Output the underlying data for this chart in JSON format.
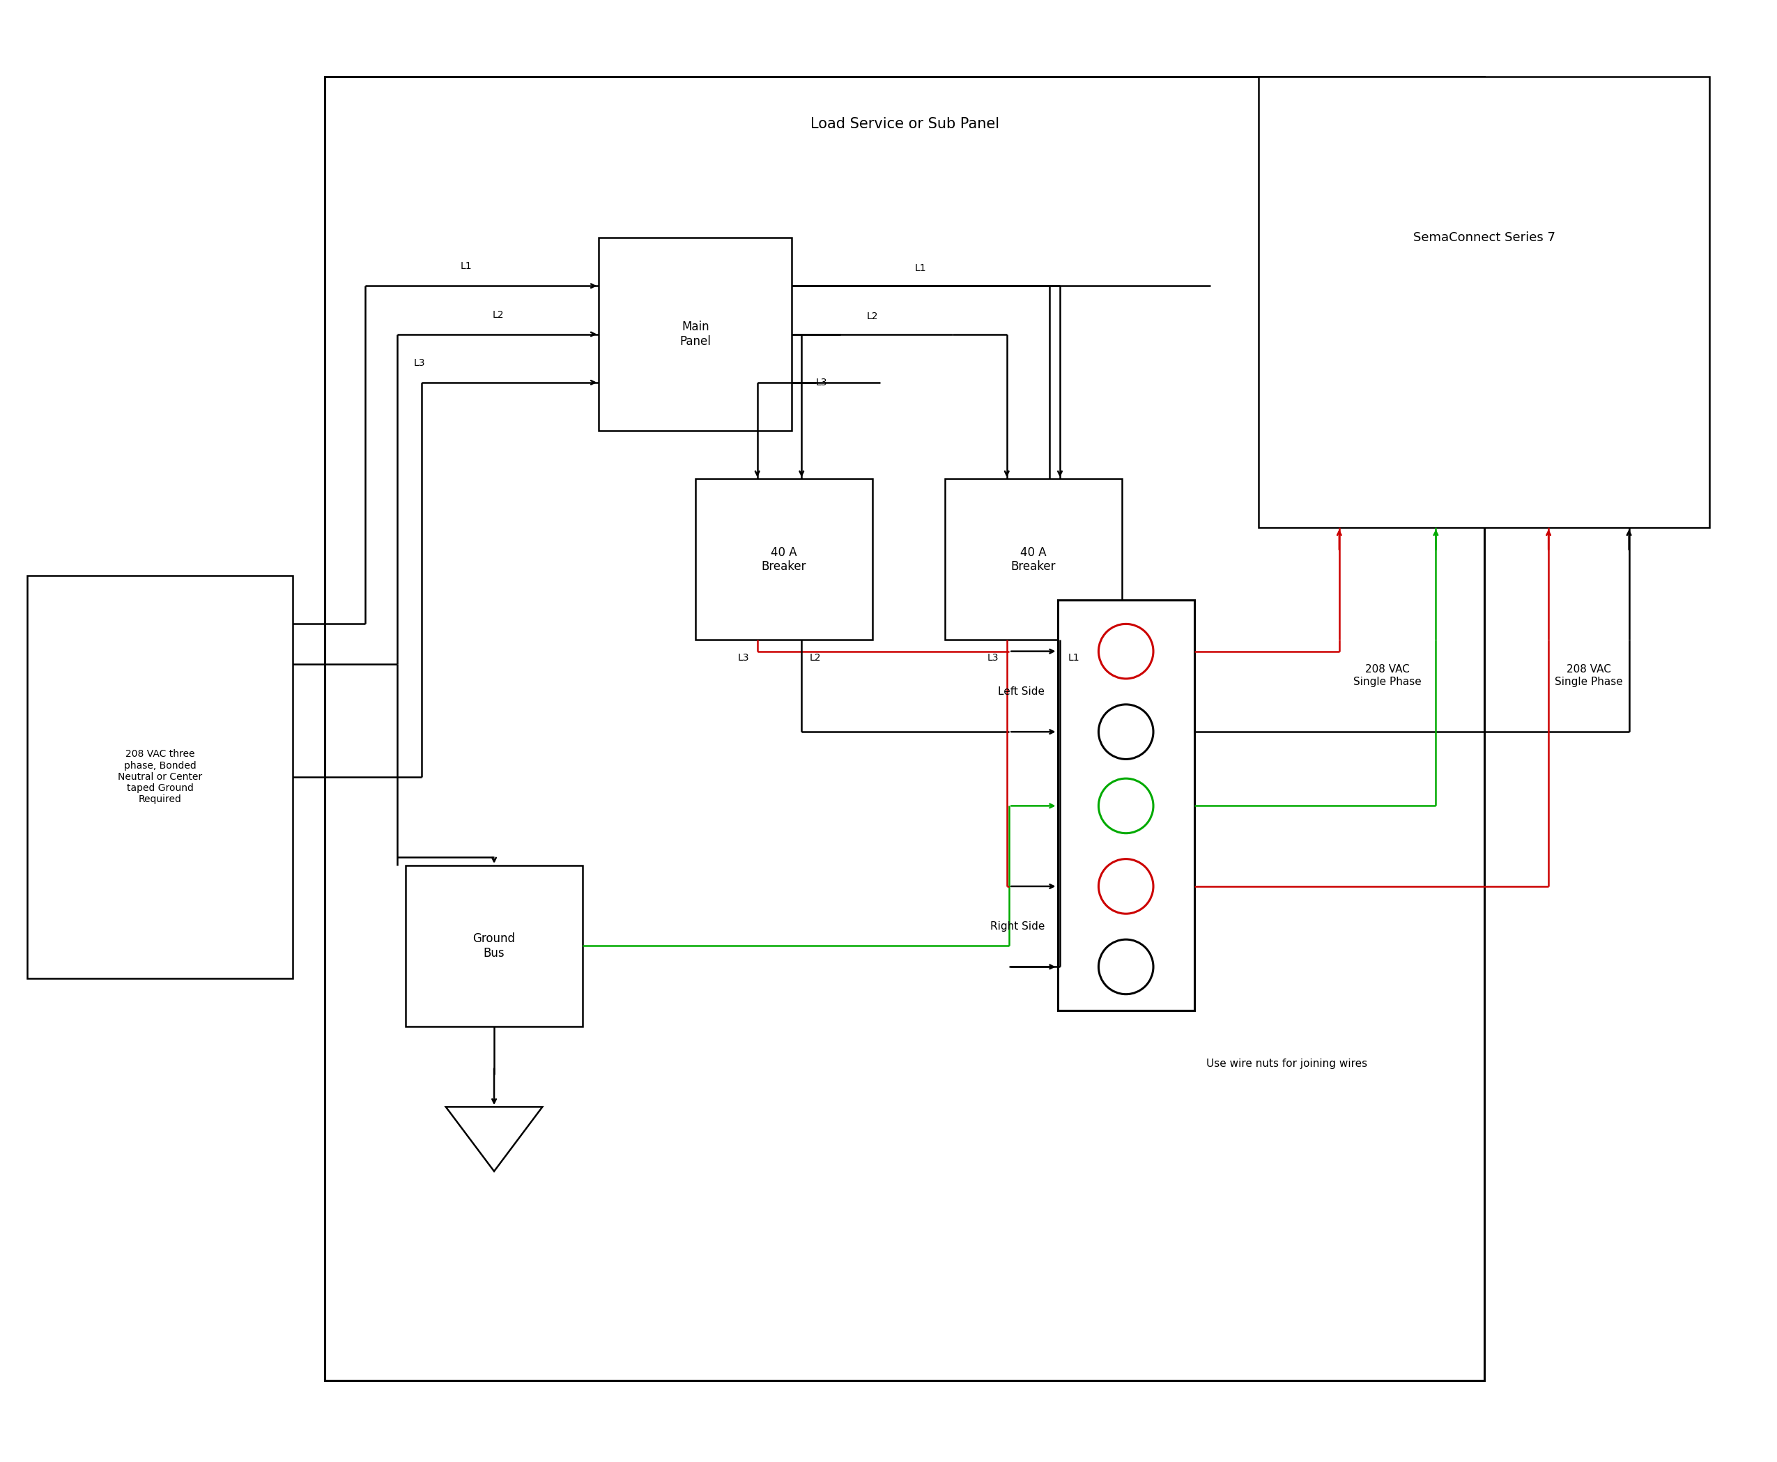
{
  "fig_width": 25.5,
  "fig_height": 20.98,
  "bg_color": "#ffffff",
  "line_color": "#000000",
  "red_color": "#cc0000",
  "green_color": "#00aa00",
  "title_panel": "Load Service or Sub Panel",
  "title_sema": "SemaConnect Series 7",
  "label_208vac": "208 VAC three\nphase, Bonded\nNeutral or Center\ntaped Ground\nRequired",
  "label_main": "Main\nPanel",
  "label_ground": "Ground\nBus",
  "label_breaker1": "40 A\nBreaker",
  "label_breaker2": "40 A\nBreaker",
  "label_left": "Left Side",
  "label_right": "Right Side",
  "label_208_single1": "208 VAC\nSingle Phase",
  "label_208_single2": "208 VAC\nSingle Phase",
  "label_wire_nuts": "Use wire nuts for joining wires"
}
